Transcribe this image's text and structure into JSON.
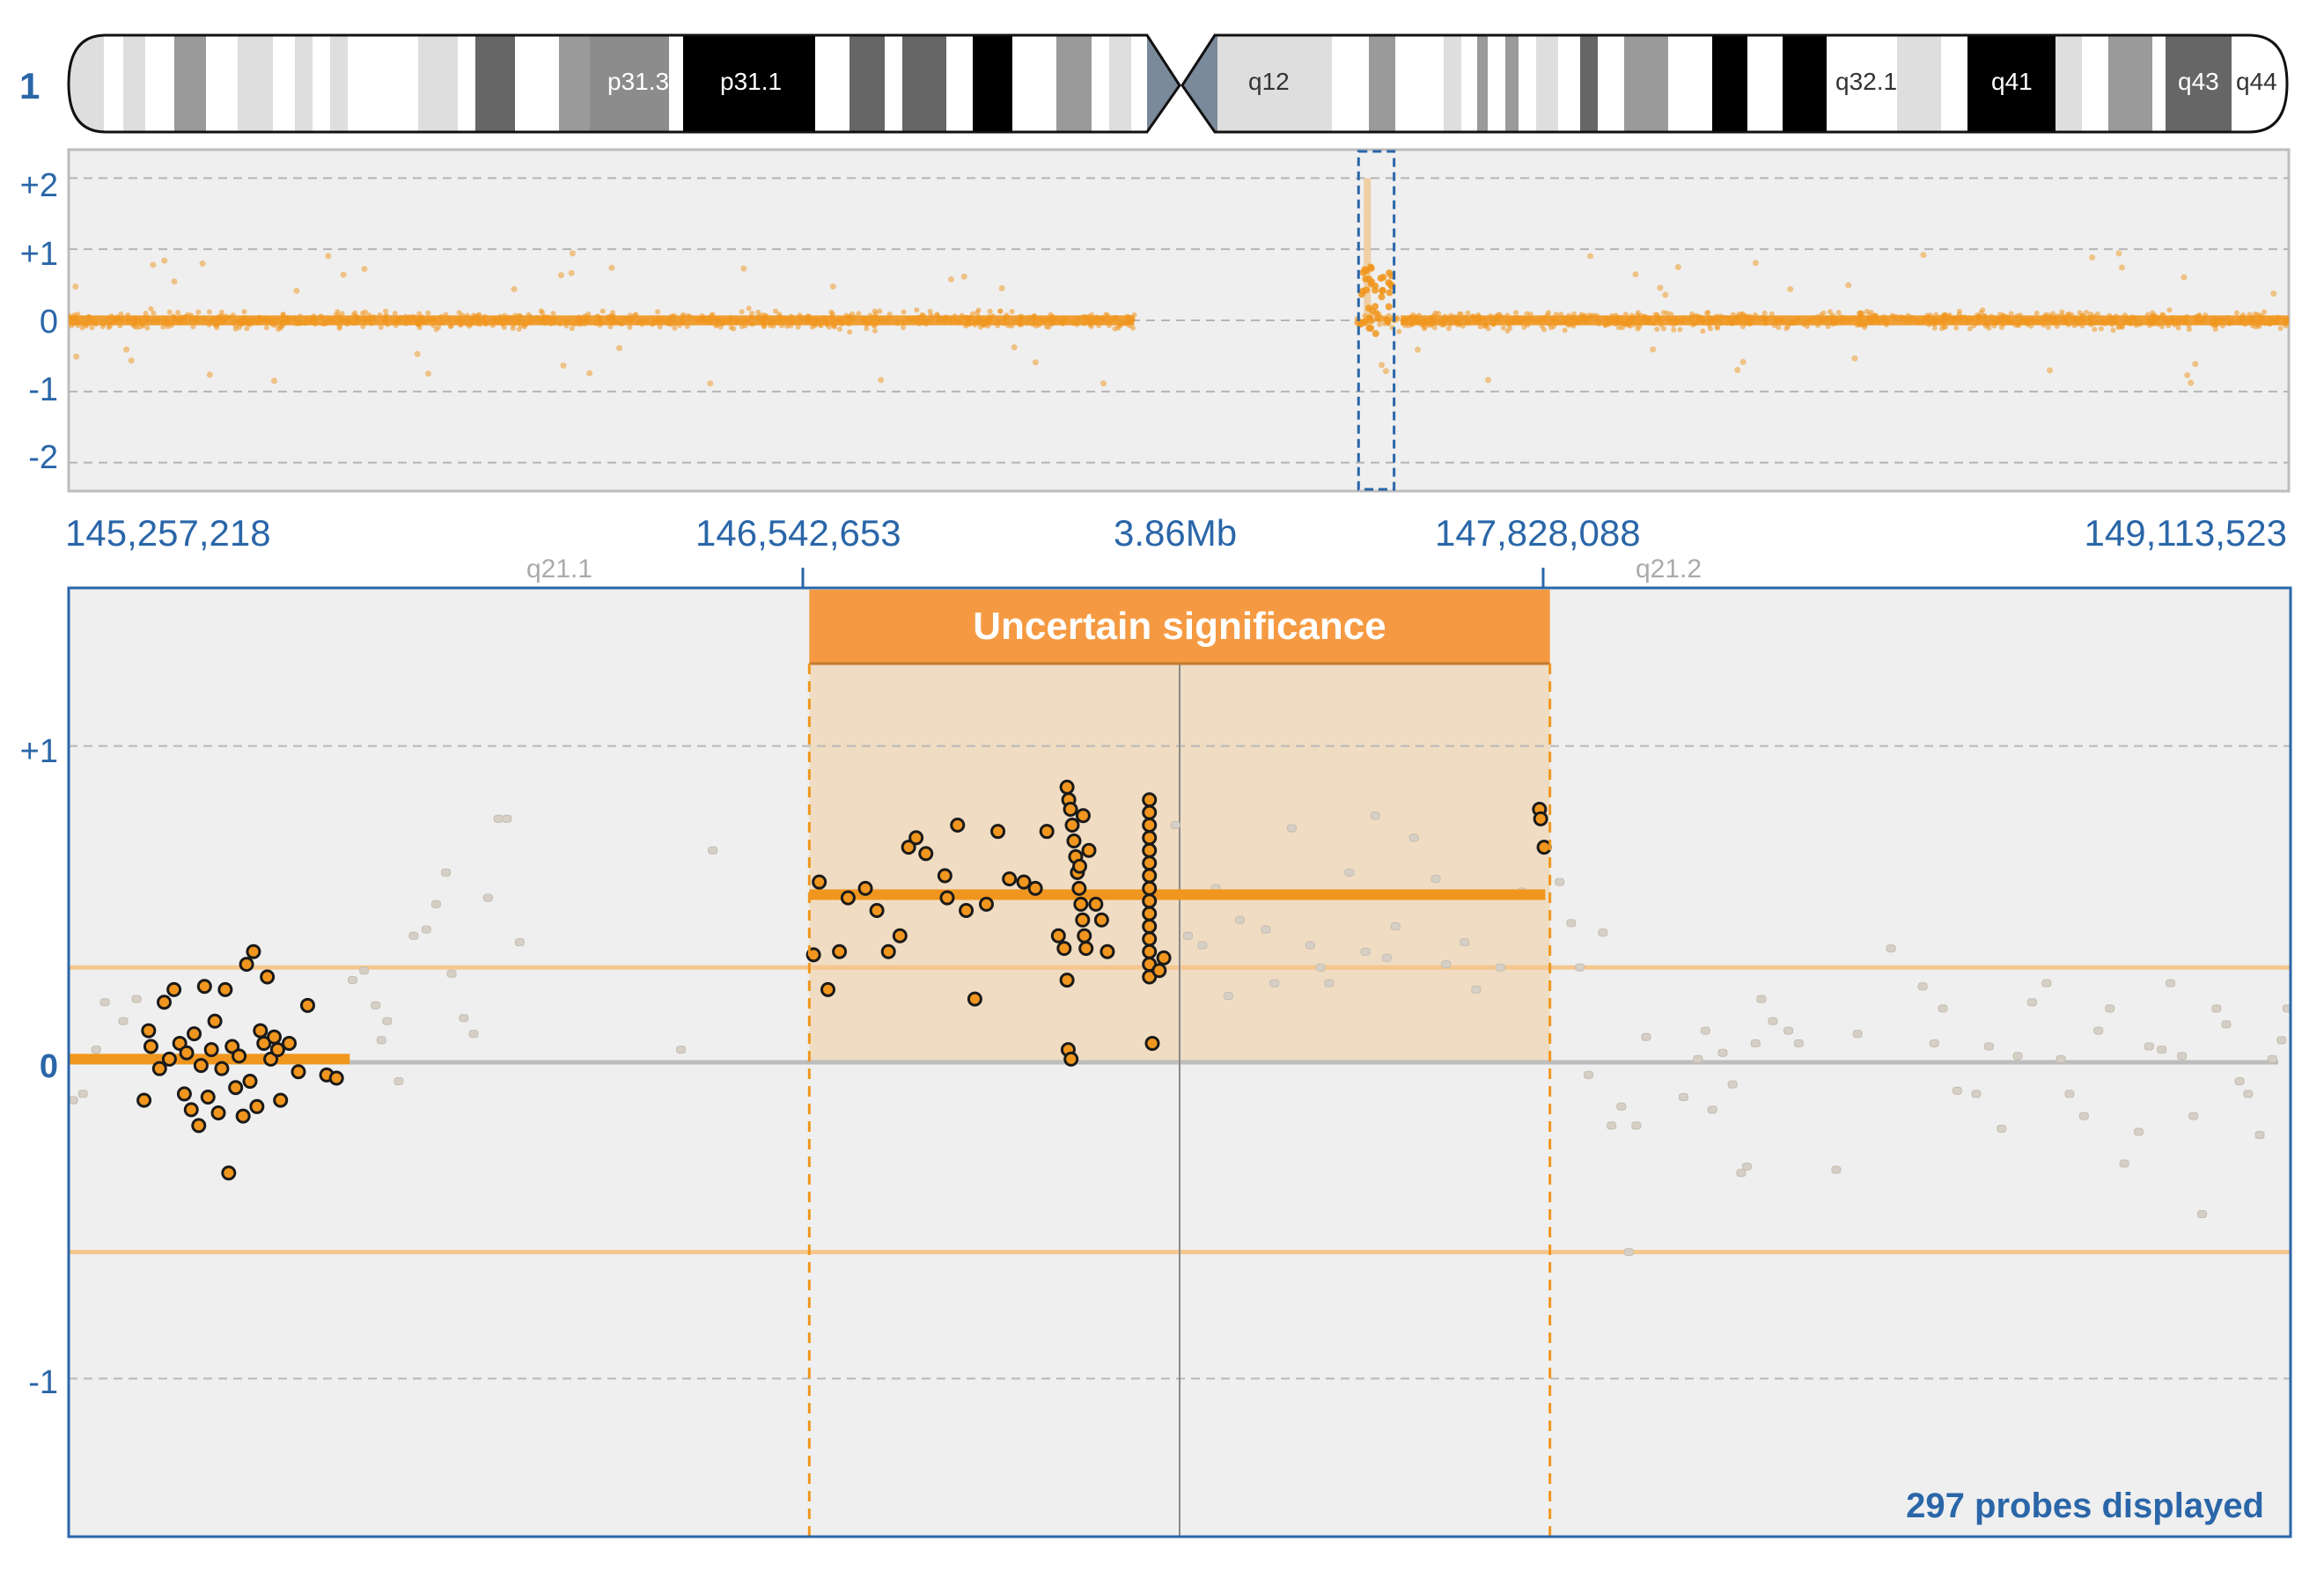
{
  "chromosome": {
    "number": "1",
    "band_labels": [
      "p31.3",
      "p31.1",
      "q12",
      "q32.1",
      "q41",
      "q43",
      "q44"
    ]
  },
  "overview": {
    "y_ticks": [
      "+2",
      "+1",
      "0",
      "-1",
      "-2"
    ]
  },
  "ruler": {
    "positions": [
      "145,257,218",
      "146,542,653",
      "147,828,088",
      "149,113,523"
    ],
    "span_label": "3.86Mb",
    "bands": [
      "q21.1",
      "q21.2"
    ]
  },
  "detail": {
    "y_ticks": [
      "+1",
      "0",
      "-1"
    ],
    "region_label": "Uncertain significance",
    "probe_count_label": "297 probes displayed"
  },
  "colors": {
    "accent": "#f0961e",
    "region_fill": "#f0dcc2",
    "region_header": "#f59a42",
    "axis_blue": "#2a66a8",
    "panel_bg": "#efefef",
    "threshold": "#f5c78e"
  },
  "chart_data": [
    {
      "type": "scatter",
      "title": "",
      "xlabel": "",
      "ylabel": "",
      "ylim": [
        -2.4,
        2.4
      ],
      "grid": true,
      "series": [
        {
          "name": "",
          "gap": [
            0.48,
            0.58
          ],
          "mean": 0,
          "spread": 0.12
        }
      ],
      "highlight_window": [
        0.581,
        0.597
      ],
      "spike_peak": 0.8
    },
    {
      "type": "scatter",
      "title": "",
      "xlabel": "",
      "ylabel": "",
      "xlim": [
        145257218,
        149113523
      ],
      "ylim": [
        -1.5,
        1.5
      ],
      "grid": true,
      "thresholds": [
        0.3,
        -0.6
      ],
      "region": {
        "start": 146542653,
        "end": 147828088,
        "label": "Uncertain significance"
      },
      "segments": [
        {
          "start": 145257218,
          "end": 145745000,
          "value": 0.01
        },
        {
          "start": 146542653,
          "end": 147820000,
          "value": 0.53
        }
      ],
      "probes_in_segments": [
        [
          145400000,
          0.05
        ],
        [
          145415000,
          -0.02
        ],
        [
          145423000,
          0.19
        ],
        [
          145432000,
          0.01
        ],
        [
          145440000,
          0.23
        ],
        [
          145450000,
          0.06
        ],
        [
          145458000,
          -0.1
        ],
        [
          145462000,
          0.03
        ],
        [
          145470000,
          -0.15
        ],
        [
          145475000,
          0.09
        ],
        [
          145483000,
          -0.2
        ],
        [
          145487000,
          -0.01
        ],
        [
          145493000,
          0.24
        ],
        [
          145499000,
          -0.11
        ],
        [
          145505000,
          0.04
        ],
        [
          145511000,
          0.13
        ],
        [
          145517000,
          -0.16
        ],
        [
          145523000,
          -0.02
        ],
        [
          145529000,
          0.23
        ],
        [
          145535000,
          -0.35
        ],
        [
          145541000,
          0.05
        ],
        [
          145547000,
          -0.08
        ],
        [
          145553000,
          0.02
        ],
        [
          145560000,
          -0.17
        ],
        [
          145566000,
          0.31
        ],
        [
          145572000,
          -0.06
        ],
        [
          145578000,
          0.35
        ],
        [
          145584000,
          -0.14
        ],
        [
          145590000,
          0.1
        ],
        [
          145596000,
          0.06
        ],
        [
          145602000,
          0.27
        ],
        [
          145608000,
          0.01
        ],
        [
          145614000,
          0.08
        ],
        [
          145620000,
          0.04
        ],
        [
          145625000,
          -0.12
        ],
        [
          145640000,
          0.06
        ],
        [
          145656000,
          -0.03
        ],
        [
          145672000,
          0.18
        ],
        [
          145705000,
          -0.04
        ],
        [
          145722000,
          -0.05
        ],
        [
          145388000,
          -0.12
        ],
        [
          145396000,
          0.1
        ],
        [
          146550000,
          0.34
        ],
        [
          146560000,
          0.57
        ],
        [
          146575000,
          0.23
        ],
        [
          146595000,
          0.35
        ],
        [
          146610000,
          0.52
        ],
        [
          146640000,
          0.55
        ],
        [
          146660000,
          0.48
        ],
        [
          146680000,
          0.35
        ],
        [
          146700000,
          0.4
        ],
        [
          146715000,
          0.68
        ],
        [
          146728000,
          0.71
        ],
        [
          146745000,
          0.66
        ],
        [
          146778000,
          0.59
        ],
        [
          146782000,
          0.52
        ],
        [
          146800000,
          0.75
        ],
        [
          146815000,
          0.48
        ],
        [
          146830000,
          0.2
        ],
        [
          146850000,
          0.5
        ],
        [
          146870000,
          0.73
        ],
        [
          146890000,
          0.58
        ],
        [
          146915000,
          0.57
        ],
        [
          146935000,
          0.55
        ],
        [
          146955000,
          0.73
        ],
        [
          146990000,
          0.87
        ],
        [
          146993000,
          0.83
        ],
        [
          146996000,
          0.8
        ],
        [
          146999000,
          0.75
        ],
        [
          147002000,
          0.7
        ],
        [
          147005000,
          0.65
        ],
        [
          147008000,
          0.6
        ],
        [
          147011000,
          0.55
        ],
        [
          147014000,
          0.5
        ],
        [
          147017000,
          0.45
        ],
        [
          147020000,
          0.4
        ],
        [
          147023000,
          0.36
        ],
        [
          146990000,
          0.26
        ],
        [
          146992000,
          0.04
        ],
        [
          146997000,
          0.01
        ],
        [
          147012000,
          0.62
        ],
        [
          147018000,
          0.78
        ],
        [
          147028000,
          0.67
        ],
        [
          146975000,
          0.4
        ],
        [
          146985000,
          0.36
        ],
        [
          147040000,
          0.5
        ],
        [
          147050000,
          0.45
        ],
        [
          147060000,
          0.35
        ],
        [
          147133000,
          0.83
        ],
        [
          147133000,
          0.79
        ],
        [
          147133000,
          0.75
        ],
        [
          147133000,
          0.71
        ],
        [
          147133000,
          0.67
        ],
        [
          147133000,
          0.63
        ],
        [
          147133000,
          0.59
        ],
        [
          147133000,
          0.55
        ],
        [
          147133000,
          0.51
        ],
        [
          147133000,
          0.47
        ],
        [
          147133000,
          0.43
        ],
        [
          147133000,
          0.39
        ],
        [
          147133000,
          0.35
        ],
        [
          147133000,
          0.31
        ],
        [
          147133000,
          0.27
        ],
        [
          147138000,
          0.06
        ],
        [
          147150000,
          0.29
        ],
        [
          147158000,
          0.33
        ],
        [
          147810000,
          0.8
        ],
        [
          147812000,
          0.77
        ],
        [
          147818000,
          0.68
        ]
      ],
      "probes_outside": [
        [
          145265000,
          -0.12
        ],
        [
          145282000,
          -0.1
        ],
        [
          145305000,
          0.04
        ],
        [
          145320000,
          0.19
        ],
        [
          145352000,
          0.13
        ],
        [
          145375000,
          0.2
        ],
        [
          145750000,
          0.26
        ],
        [
          145770000,
          0.29
        ],
        [
          145790000,
          0.18
        ],
        [
          145800000,
          0.07
        ],
        [
          145810000,
          0.13
        ],
        [
          145830000,
          -0.06
        ],
        [
          145856000,
          0.4
        ],
        [
          145878000,
          0.42
        ],
        [
          145895000,
          0.5
        ],
        [
          145912000,
          0.6
        ],
        [
          145922000,
          0.28
        ],
        [
          145943000,
          0.14
        ],
        [
          145960000,
          0.09
        ],
        [
          145985000,
          0.52
        ],
        [
          146003000,
          0.77
        ],
        [
          146018000,
          0.77
        ],
        [
          146040000,
          0.38
        ],
        [
          146320000,
          0.04
        ],
        [
          146375000,
          0.67
        ],
        [
          147178000,
          0.75
        ],
        [
          147200000,
          0.4
        ],
        [
          147225000,
          0.37
        ],
        [
          147248000,
          0.55
        ],
        [
          147270000,
          0.21
        ],
        [
          147290000,
          0.45
        ],
        [
          147335000,
          0.42
        ],
        [
          147350000,
          0.25
        ],
        [
          147380000,
          0.74
        ],
        [
          147412000,
          0.37
        ],
        [
          147430000,
          0.3
        ],
        [
          147445000,
          0.25
        ],
        [
          147480000,
          0.6
        ],
        [
          147508000,
          0.35
        ],
        [
          147525000,
          0.78
        ],
        [
          147545000,
          0.33
        ],
        [
          147560000,
          0.43
        ],
        [
          147592000,
          0.71
        ],
        [
          147630000,
          0.58
        ],
        [
          147648000,
          0.31
        ],
        [
          147680000,
          0.38
        ],
        [
          147700000,
          0.23
        ],
        [
          147742000,
          0.3
        ],
        [
          147780000,
          0.54
        ],
        [
          147795000,
          0.53
        ],
        [
          147845000,
          0.57
        ],
        [
          147865000,
          0.44
        ],
        [
          147880000,
          0.3
        ],
        [
          147895000,
          -0.04
        ],
        [
          147920000,
          0.41
        ],
        [
          147935000,
          -0.2
        ],
        [
          147952000,
          -0.14
        ],
        [
          147965000,
          -0.6
        ],
        [
          147978000,
          -0.2
        ],
        [
          147995000,
          0.08
        ],
        [
          148060000,
          -0.11
        ],
        [
          148085000,
          0.01
        ],
        [
          148098000,
          0.1
        ],
        [
          148110000,
          -0.15
        ],
        [
          148128000,
          0.03
        ],
        [
          148145000,
          -0.07
        ],
        [
          148160000,
          -0.35
        ],
        [
          148170000,
          -0.33
        ],
        [
          148185000,
          0.06
        ],
        [
          148195000,
          0.2
        ],
        [
          148215000,
          0.13
        ],
        [
          148242000,
          0.1
        ],
        [
          148260000,
          0.06
        ],
        [
          148325000,
          -0.34
        ],
        [
          148362000,
          0.09
        ],
        [
          148420000,
          0.36
        ],
        [
          148475000,
          0.24
        ],
        [
          148495000,
          0.06
        ],
        [
          148510000,
          0.17
        ],
        [
          148535000,
          -0.09
        ],
        [
          148568000,
          -0.1
        ],
        [
          148590000,
          0.05
        ],
        [
          148612000,
          -0.21
        ],
        [
          148640000,
          0.02
        ],
        [
          148665000,
          0.19
        ],
        [
          148690000,
          0.25
        ],
        [
          148715000,
          0.01
        ],
        [
          148730000,
          -0.1
        ],
        [
          148755000,
          -0.17
        ],
        [
          148780000,
          0.1
        ],
        [
          148800000,
          0.17
        ],
        [
          148825000,
          -0.32
        ],
        [
          148850000,
          -0.22
        ],
        [
          148868000,
          0.05
        ],
        [
          148890000,
          0.04
        ],
        [
          148905000,
          0.25
        ],
        [
          148925000,
          0.02
        ],
        [
          148945000,
          -0.17
        ],
        [
          148960000,
          -0.48
        ],
        [
          148985000,
          0.17
        ],
        [
          149002000,
          0.12
        ],
        [
          149025000,
          -0.06
        ],
        [
          149040000,
          -0.1
        ],
        [
          149060000,
          -0.23
        ],
        [
          149082000,
          0.01
        ],
        [
          149098000,
          0.07
        ],
        [
          149108000,
          0.17
        ]
      ]
    }
  ]
}
